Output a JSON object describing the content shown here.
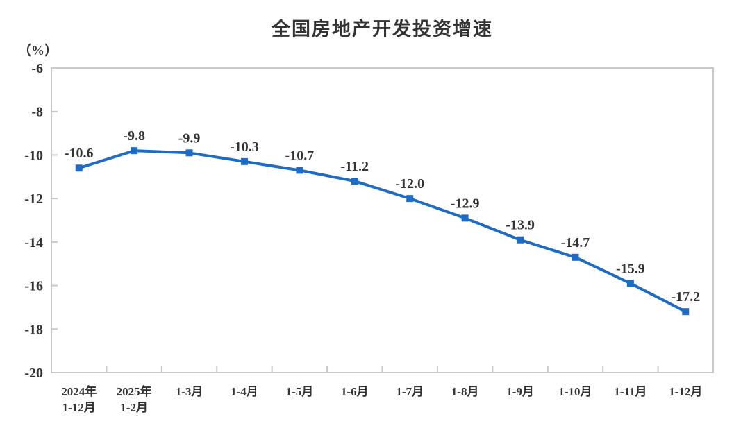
{
  "chart_data": {
    "type": "line",
    "title": "全国房地产开发投资增速",
    "unit_label": "（%）",
    "categories": [
      [
        "2024年",
        "1-12月"
      ],
      [
        "2025年",
        "1-2月"
      ],
      [
        "1-3月"
      ],
      [
        "1-4月"
      ],
      [
        "1-5月"
      ],
      [
        "1-6月"
      ],
      [
        "1-7月"
      ],
      [
        "1-8月"
      ],
      [
        "1-9月"
      ],
      [
        "1-10月"
      ],
      [
        "1-11月"
      ],
      [
        "1-12月"
      ]
    ],
    "values": [
      -10.6,
      -9.8,
      -9.9,
      -10.3,
      -10.7,
      -11.2,
      -12.0,
      -12.9,
      -13.9,
      -14.7,
      -15.9,
      -17.2
    ],
    "data_labels": [
      "-10.6",
      "-9.8",
      "-9.9",
      "-10.3",
      "-10.7",
      "-11.2",
      "-12.0",
      "-12.9",
      "-13.9",
      "-14.7",
      "-15.9",
      "-17.2"
    ],
    "ylim": [
      -20,
      -6
    ],
    "yticks": [
      -6,
      -8,
      -10,
      -12,
      -14,
      -16,
      -18,
      -20
    ],
    "grid": false,
    "legend": "none",
    "marker": "square",
    "line_color": "#1f6bc4",
    "marker_color": "#1f6bc4",
    "text_color": "#333333",
    "axis_color": "#c9c9c9"
  }
}
